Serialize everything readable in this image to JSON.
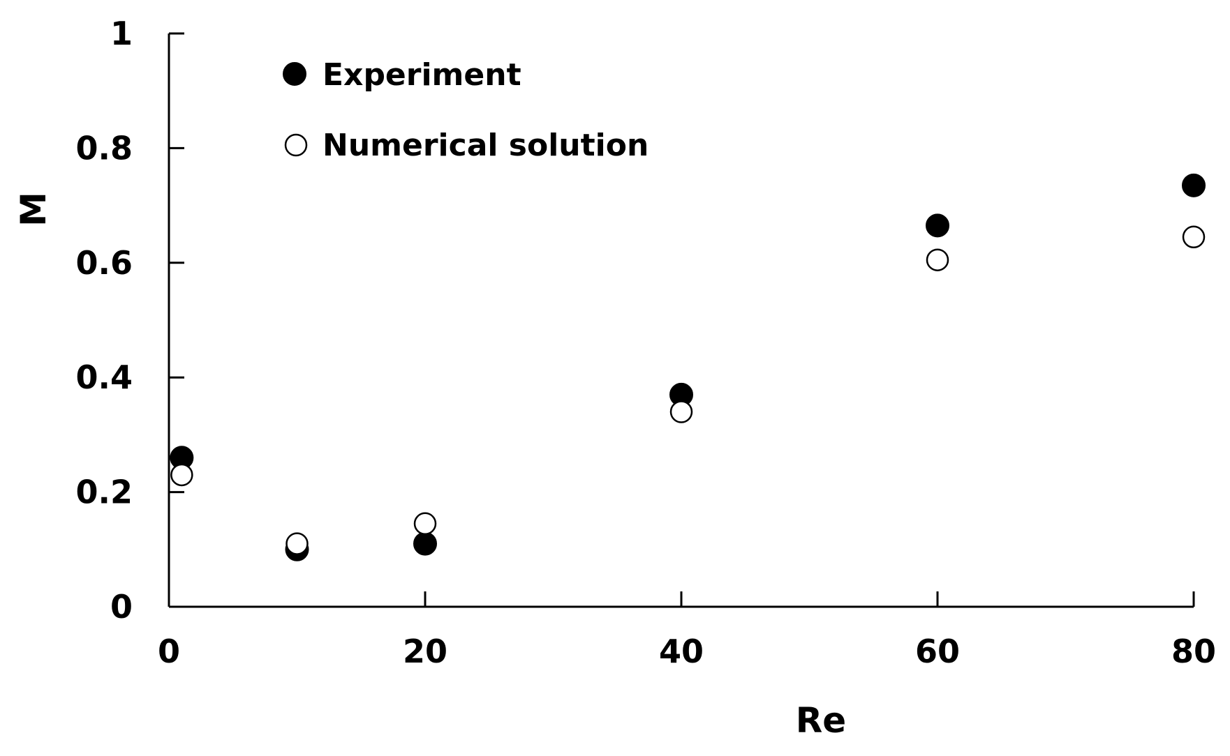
{
  "chart_data": {
    "type": "scatter",
    "title": "",
    "xlabel": "Re",
    "ylabel": "M",
    "xlim": [
      0,
      80
    ],
    "ylim": [
      0,
      1
    ],
    "x_ticks": [
      "0",
      "20",
      "40",
      "60",
      "80"
    ],
    "y_ticks": [
      "0",
      "0.2",
      "0.4",
      "0.6",
      "0.8",
      "1"
    ],
    "grid": false,
    "legend_position": "top-left",
    "series": [
      {
        "name": "Experiment",
        "marker": "filled-circle",
        "color": "#000000",
        "points": [
          {
            "x": 1,
            "y": 0.26
          },
          {
            "x": 10,
            "y": 0.1
          },
          {
            "x": 20,
            "y": 0.11
          },
          {
            "x": 40,
            "y": 0.37
          },
          {
            "x": 60,
            "y": 0.665
          },
          {
            "x": 80,
            "y": 0.735
          }
        ]
      },
      {
        "name": "Numerical solution",
        "marker": "open-circle",
        "color": "#000000",
        "points": [
          {
            "x": 1,
            "y": 0.23
          },
          {
            "x": 10,
            "y": 0.11
          },
          {
            "x": 20,
            "y": 0.145
          },
          {
            "x": 40,
            "y": 0.34
          },
          {
            "x": 60,
            "y": 0.605
          },
          {
            "x": 80,
            "y": 0.645
          }
        ]
      }
    ]
  }
}
